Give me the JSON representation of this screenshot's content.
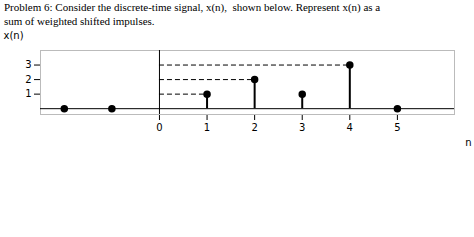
{
  "chart_data": {
    "type": "stem",
    "title": "Problem 6: Consider the discrete-time signal, x(n),  shown below. Represent x(n) as a",
    "subtitle": "sum of weighted shifted impulses.",
    "xlabel": "n",
    "ylabel": "x(n)",
    "x": [
      -2,
      -1,
      1,
      2,
      3,
      4,
      5
    ],
    "values": [
      0,
      0,
      1,
      2,
      1,
      3,
      0
    ],
    "color": "black",
    "dashed_lines": [
      {
        "y": 1,
        "x_start": 0,
        "x_end": 1
      },
      {
        "y": 2,
        "x_start": 0,
        "x_end": 2
      },
      {
        "y": 3,
        "x_start": 0,
        "x_end": 4
      }
    ],
    "xlim": [
      -2.5,
      6.2
    ],
    "ylim": [
      -0.4,
      4.0
    ],
    "xticks": [
      0,
      1,
      2,
      3,
      4,
      5
    ],
    "yticks": [
      1,
      2,
      3
    ],
    "grid": false
  }
}
